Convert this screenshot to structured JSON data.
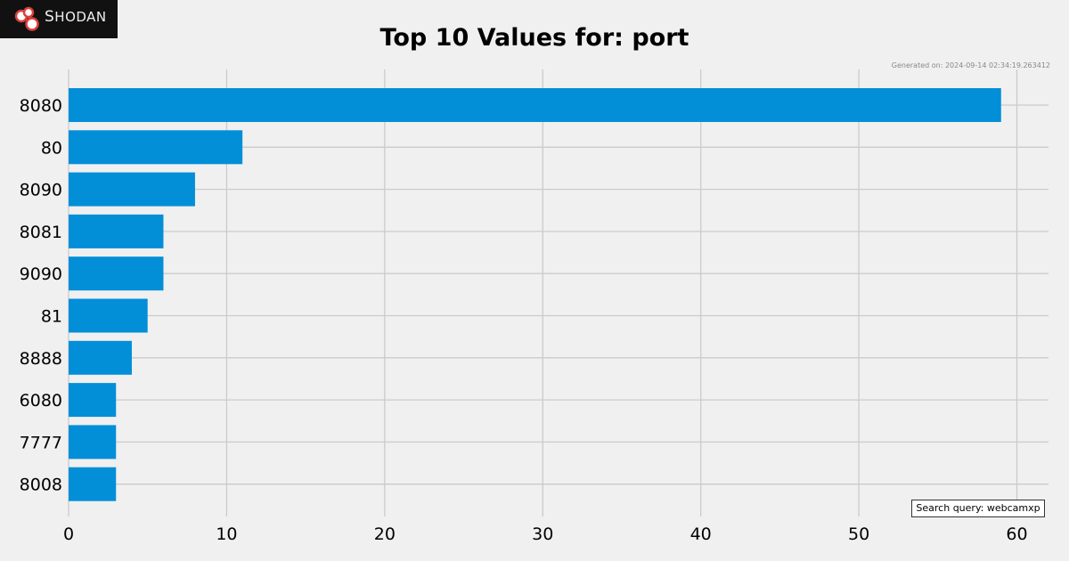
{
  "brand": {
    "name_first": "S",
    "name_rest": "HODAN",
    "logo_icon": "shodan-logo-icon",
    "background": "#111111"
  },
  "generated_text": "Generated on: 2024-09-14 02:34:19.263412",
  "search_query": "Search query: webcamxp",
  "chart_data": {
    "type": "bar",
    "orientation": "horizontal",
    "title": "Top 10 Values for: port",
    "categories": [
      "8080",
      "80",
      "8090",
      "8081",
      "9090",
      "81",
      "8888",
      "6080",
      "7777",
      "8008"
    ],
    "values": [
      59,
      11,
      8,
      6,
      6,
      5,
      4,
      3,
      3,
      3
    ],
    "xlim": [
      0,
      62
    ],
    "xticks": [
      0,
      10,
      20,
      30,
      40,
      50,
      60
    ],
    "grid": true,
    "bar_color": "#038ed8",
    "xlabel": "",
    "ylabel": ""
  }
}
